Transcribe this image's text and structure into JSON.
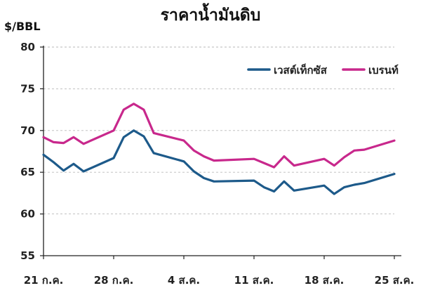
{
  "chart_data": {
    "type": "line",
    "title": "ราคาน้ำมันดิบ",
    "ylabel": "$/BBL",
    "xlabel": "",
    "ylim": [
      55,
      80
    ],
    "yticks": [
      55,
      60,
      65,
      70,
      75,
      80
    ],
    "grid": true,
    "legend_position": "top-right",
    "x": [
      "21 ก.ค.",
      "22 ก.ค.",
      "23 ก.ค.",
      "24 ก.ค.",
      "25 ก.ค.",
      "26 ก.ค.",
      "27 ก.ค.",
      "28 ก.ค.",
      "29 ก.ค.",
      "30 ก.ค.",
      "31 ก.ค.",
      "1 ส.ค.",
      "2 ส.ค.",
      "3 ส.ค.",
      "4 ส.ค.",
      "5 ส.ค.",
      "6 ส.ค.",
      "7 ส.ค.",
      "8 ส.ค.",
      "9 ส.ค.",
      "10 ส.ค.",
      "11 ส.ค.",
      "12 ส.ค.",
      "13 ส.ค.",
      "14 ส.ค.",
      "15 ส.ค.",
      "16 ส.ค.",
      "17 ส.ค.",
      "18 ส.ค.",
      "19 ส.ค.",
      "20 ส.ค.",
      "21 ส.ค.",
      "22 ส.ค.",
      "23 ส.ค.",
      "24 ส.ค.",
      "25 ส.ค."
    ],
    "xtick_labels": [
      "21 ก.ค.",
      "28 ก.ค.",
      "4 ส.ค.",
      "11 ส.ค.",
      "18 ส.ค.",
      "25 ส.ค."
    ],
    "series": [
      {
        "name": "เวสต์เท็กซัส",
        "color": "#1d5a8a",
        "points": [
          [
            "21 ก.ค.",
            67.1
          ],
          [
            "22 ก.ค.",
            66.2
          ],
          [
            "23 ก.ค.",
            65.2
          ],
          [
            "24 ก.ค.",
            66.0
          ],
          [
            "25 ก.ค.",
            65.1
          ],
          [
            "28 ก.ค.",
            66.7
          ],
          [
            "29 ก.ค.",
            69.2
          ],
          [
            "30 ก.ค.",
            70.0
          ],
          [
            "31 ก.ค.",
            69.3
          ],
          [
            "1 ส.ค.",
            67.3
          ],
          [
            "4 ส.ค.",
            66.3
          ],
          [
            "5 ส.ค.",
            65.1
          ],
          [
            "6 ส.ค.",
            64.3
          ],
          [
            "7 ส.ค.",
            63.9
          ],
          [
            "11 ส.ค.",
            64.0
          ],
          [
            "12 ส.ค.",
            63.2
          ],
          [
            "13 ส.ค.",
            62.7
          ],
          [
            "14 ส.ค.",
            63.9
          ],
          [
            "15 ส.ค.",
            62.8
          ],
          [
            "18 ส.ค.",
            63.4
          ],
          [
            "19 ส.ค.",
            62.4
          ],
          [
            "20 ส.ค.",
            63.2
          ],
          [
            "21 ส.ค.",
            63.5
          ],
          [
            "22 ส.ค.",
            63.7
          ],
          [
            "25 ส.ค.",
            64.8
          ]
        ]
      },
      {
        "name": "เบรนท์",
        "color": "#c8288c",
        "points": [
          [
            "21 ก.ค.",
            69.2
          ],
          [
            "22 ก.ค.",
            68.6
          ],
          [
            "23 ก.ค.",
            68.5
          ],
          [
            "24 ก.ค.",
            69.2
          ],
          [
            "25 ก.ค.",
            68.4
          ],
          [
            "28 ก.ค.",
            70.0
          ],
          [
            "29 ก.ค.",
            72.5
          ],
          [
            "30 ก.ค.",
            73.2
          ],
          [
            "31 ก.ค.",
            72.5
          ],
          [
            "1 ส.ค.",
            69.7
          ],
          [
            "4 ส.ค.",
            68.8
          ],
          [
            "5 ส.ค.",
            67.6
          ],
          [
            "6 ส.ค.",
            66.9
          ],
          [
            "7 ส.ค.",
            66.4
          ],
          [
            "11 ส.ค.",
            66.6
          ],
          [
            "12 ส.ค.",
            66.1
          ],
          [
            "13 ส.ค.",
            65.6
          ],
          [
            "14 ส.ค.",
            66.9
          ],
          [
            "15 ส.ค.",
            65.8
          ],
          [
            "18 ส.ค.",
            66.6
          ],
          [
            "19 ส.ค.",
            65.8
          ],
          [
            "20 ส.ค.",
            66.8
          ],
          [
            "21 ส.ค.",
            67.6
          ],
          [
            "22 ส.ค.",
            67.7
          ],
          [
            "25 ส.ค.",
            68.8
          ]
        ]
      }
    ]
  }
}
